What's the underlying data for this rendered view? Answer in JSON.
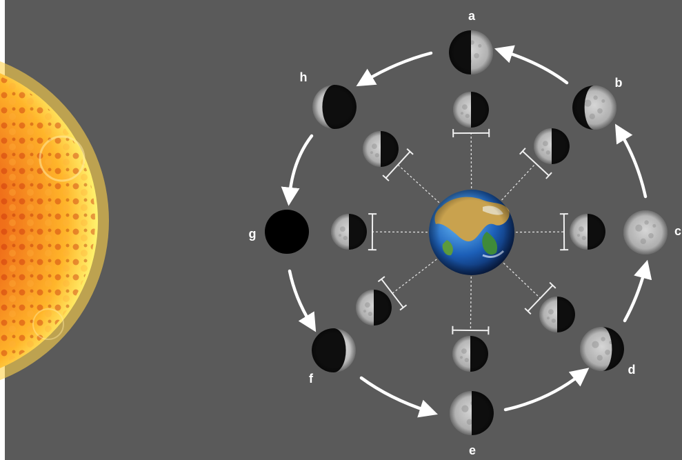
{
  "diagram": {
    "colors": {
      "background": "#5a5a5a",
      "arrow": "#ffffff",
      "label": "#ffffff",
      "moon_lit": "#c9c9c9",
      "moon_dark": "#0e0e0e",
      "sun_core": "#f2a51a",
      "sun_edge": "#fff27a"
    },
    "sun": {
      "icon": "sun-icon",
      "label": ""
    },
    "earth": {
      "icon": "earth-icon",
      "label": ""
    },
    "outer_phases": [
      {
        "id": "a",
        "label": "a",
        "phase": "first-quarter"
      },
      {
        "id": "b",
        "label": "b",
        "phase": "waxing-gibbous"
      },
      {
        "id": "c",
        "label": "c",
        "phase": "full-moon"
      },
      {
        "id": "d",
        "label": "d",
        "phase": "waning-gibbous"
      },
      {
        "id": "e",
        "label": "e",
        "phase": "third-quarter"
      },
      {
        "id": "f",
        "label": "f",
        "phase": "waning-crescent"
      },
      {
        "id": "g",
        "label": "g",
        "phase": "new-moon"
      },
      {
        "id": "h",
        "label": "h",
        "phase": "waxing-crescent"
      }
    ],
    "orbit_direction": "counter-clockwise",
    "inner_moons": {
      "count": 8,
      "lit_side": "facing-sun"
    }
  }
}
